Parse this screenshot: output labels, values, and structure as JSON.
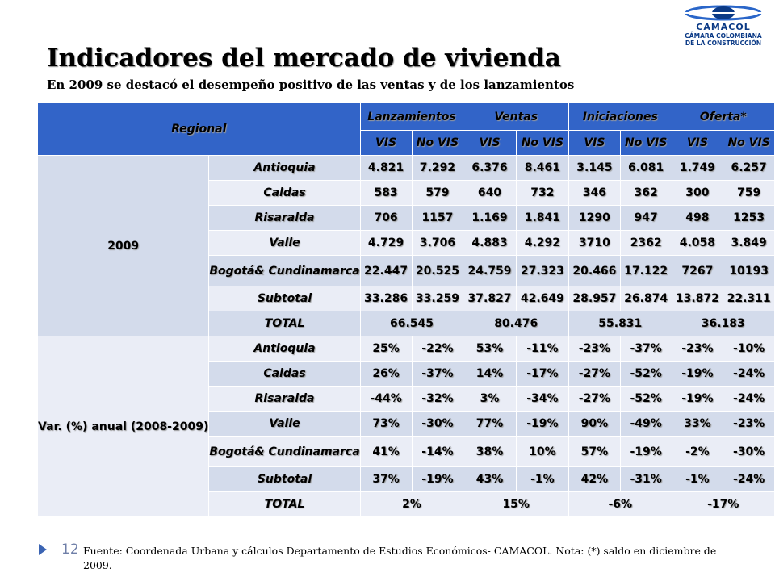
{
  "logo": {
    "brand": "CAMACOL",
    "line1": "CÁMARA COLOMBIANA",
    "line2": "DE LA CONSTRUCCIÓN",
    "colors": {
      "blue": "#0b3a86",
      "accent": "#2a66c9"
    }
  },
  "title": "Indicadores del mercado de vivienda",
  "subtitle": "En 2009 se destacó el desempeño positivo de las ventas y de los lanzamientos",
  "table": {
    "header": {
      "regional": "Regional",
      "groups": [
        "Lanzamientos",
        "Ventas",
        "Iniciaciones",
        "Oferta*"
      ],
      "subheaders": [
        "VIS",
        "No VIS",
        "VIS",
        "No VIS",
        "VIS",
        "No VIS",
        "VIS",
        "No VIS"
      ]
    },
    "section1": {
      "label": "2009",
      "rows": [
        {
          "region": "Antioquia",
          "values": [
            "4.821",
            "7.292",
            "6.376",
            "8.461",
            "3.145",
            "6.081",
            "1.749",
            "6.257"
          ]
        },
        {
          "region": "Caldas",
          "values": [
            "583",
            "579",
            "640",
            "732",
            "346",
            "362",
            "300",
            "759"
          ]
        },
        {
          "region": "Risaralda",
          "values": [
            "706",
            "1157",
            "1.169",
            "1.841",
            "1290",
            "947",
            "498",
            "1253"
          ]
        },
        {
          "region": "Valle",
          "values": [
            "4.729",
            "3.706",
            "4.883",
            "4.292",
            "3710",
            "2362",
            "4.058",
            "3.849"
          ]
        },
        {
          "region": "Bogotá& Cundinamarca",
          "values": [
            "22.447",
            "20.525",
            "24.759",
            "27.323",
            "20.466",
            "17.122",
            "7267",
            "10193"
          ]
        }
      ],
      "subtotal": {
        "label": "Subtotal",
        "values": [
          "33.286",
          "33.259",
          "37.827",
          "42.649",
          "28.957",
          "26.874",
          "13.872",
          "22.311"
        ]
      },
      "total": {
        "label": "TOTAL",
        "values": [
          "66.545",
          "80.476",
          "55.831",
          "36.183"
        ]
      }
    },
    "section2": {
      "label": "Var. (%) anual (2008-2009)",
      "rows": [
        {
          "region": "Antioquia",
          "values": [
            "25%",
            "-22%",
            "53%",
            "-11%",
            "-23%",
            "-37%",
            "-23%",
            "-10%"
          ]
        },
        {
          "region": "Caldas",
          "values": [
            "26%",
            "-37%",
            "14%",
            "-17%",
            "-27%",
            "-52%",
            "-19%",
            "-24%"
          ]
        },
        {
          "region": "Risaralda",
          "values": [
            "-44%",
            "-32%",
            "3%",
            "-34%",
            "-27%",
            "-52%",
            "-19%",
            "-24%"
          ]
        },
        {
          "region": "Valle",
          "values": [
            "73%",
            "-30%",
            "77%",
            "-19%",
            "90%",
            "-49%",
            "33%",
            "-23%"
          ]
        },
        {
          "region": "Bogotá& Cundinamarca",
          "values": [
            "41%",
            "-14%",
            "38%",
            "10%",
            "57%",
            "-19%",
            "-2%",
            "-30%"
          ]
        }
      ],
      "subtotal": {
        "label": "Subtotal",
        "values": [
          "37%",
          "-19%",
          "43%",
          "-1%",
          "42%",
          "-31%",
          "-1%",
          "-24%"
        ]
      },
      "total": {
        "label": "TOTAL",
        "values": [
          "2%",
          "15%",
          "-6%",
          "-17%"
        ]
      }
    }
  },
  "footer": {
    "page_number": "12",
    "source": "Fuente: Coordenada Urbana y cálculos Departamento de Estudios Económicos- CAMACOL. Nota: (*) saldo en diciembre de 2009."
  },
  "colors": {
    "header": "#3264c8",
    "cell_dark": "#d3dbeb",
    "cell_light": "#eaedf6"
  }
}
